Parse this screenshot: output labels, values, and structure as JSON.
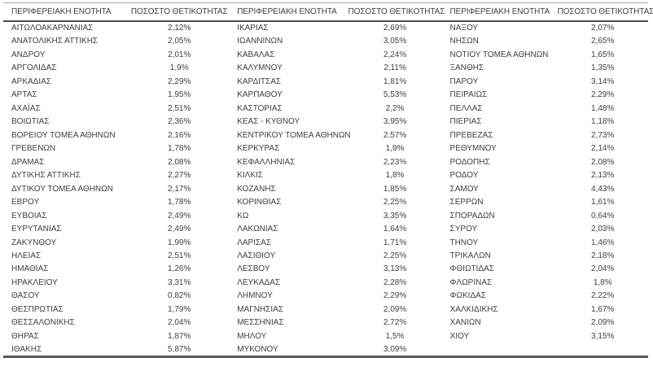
{
  "table": {
    "region_header": "ΠΕΡΙΦΕΡΕΙΑΚΗ ΕΝΟΤΗΤΑ",
    "positivity_header": "ΠΟΣΟΣΤΟ ΘΕΤΙΚΟΤΗΤΑΣ",
    "groups": [
      {
        "rows": [
          {
            "region": "ΑΙΤΩΛΟΑΚΑΡΝΑΝΙΑΣ",
            "value": "2,12%"
          },
          {
            "region": "ΑΝΑΤΟΛΙΚΗΣ ΑΤΤΙΚΗΣ",
            "value": "2,05%"
          },
          {
            "region": "ΑΝΔΡΟΥ",
            "value": "2,01%"
          },
          {
            "region": "ΑΡΓΟΛΙΔΑΣ",
            "value": "1,9%"
          },
          {
            "region": "ΑΡΚΑΔΙΑΣ",
            "value": "2,29%"
          },
          {
            "region": "ΑΡΤΑΣ",
            "value": "1,95%"
          },
          {
            "region": "ΑΧΑΪΑΣ",
            "value": "2,51%"
          },
          {
            "region": "ΒΟΙΩΤΙΑΣ",
            "value": "2,36%"
          },
          {
            "region": "ΒΟΡΕΙΟΥ ΤΟΜΕΑ ΑΘΗΝΩΝ",
            "value": "2,16%"
          },
          {
            "region": "ΓΡΕΒΕΝΩΝ",
            "value": "1,78%"
          },
          {
            "region": "ΔΡΑΜΑΣ",
            "value": "2,08%"
          },
          {
            "region": "ΔΥΤΙΚΗΣ ΑΤΤΙΚΗΣ",
            "value": "2,27%"
          },
          {
            "region": "ΔΥΤΙΚΟΥ ΤΟΜΕΑ ΑΘΗΝΩΝ",
            "value": "2,17%"
          },
          {
            "region": "ΕΒΡΟΥ",
            "value": "1,78%"
          },
          {
            "region": "ΕΥΒΟΙΑΣ",
            "value": "2,49%"
          },
          {
            "region": "ΕΥΡΥΤΑΝΙΑΣ",
            "value": "2,49%"
          },
          {
            "region": "ΖΑΚΥΝΘΟΥ",
            "value": "1,99%"
          },
          {
            "region": "ΗΛΕΙΑΣ",
            "value": "2,51%"
          },
          {
            "region": "ΗΜΑΘΙΑΣ",
            "value": "1,26%"
          },
          {
            "region": "ΗΡΑΚΛΕΙΟΥ",
            "value": "3,31%"
          },
          {
            "region": "ΘΑΣΟΥ",
            "value": "0,82%"
          },
          {
            "region": "ΘΕΣΠΡΩΤΙΑΣ",
            "value": "1,79%"
          },
          {
            "region": "ΘΕΣΣΑΛΟΝΙΚΗΣ",
            "value": "2,04%"
          },
          {
            "region": "ΘΗΡΑΣ",
            "value": "1,87%"
          },
          {
            "region": "ΙΘΑΚΗΣ",
            "value": "5,87%"
          }
        ]
      },
      {
        "rows": [
          {
            "region": "ΙΚΑΡΙΑΣ",
            "value": "2,69%"
          },
          {
            "region": "ΙΩΑΝΝΙΝΩΝ",
            "value": "3,05%"
          },
          {
            "region": "ΚΑΒΑΛΑΣ",
            "value": "2,24%"
          },
          {
            "region": "ΚΑΛΥΜΝΟΥ",
            "value": "2,11%"
          },
          {
            "region": "ΚΑΡΔΙΤΣΑΣ",
            "value": "1,81%"
          },
          {
            "region": "ΚΑΡΠΑΘΟΥ",
            "value": "5,53%"
          },
          {
            "region": "ΚΑΣΤΟΡΙΑΣ",
            "value": "2,2%"
          },
          {
            "region": "ΚΕΑΣ - ΚΥΘΝΟΥ",
            "value": "3,95%"
          },
          {
            "region": "ΚΕΝΤΡΙΚΟΥ ΤΟΜΕΑ ΑΘΗΝΩΝ",
            "value": "2,57%"
          },
          {
            "region": "ΚΕΡΚΥΡΑΣ",
            "value": "1,9%"
          },
          {
            "region": "ΚΕΦΑΛΛΗΝΙΑΣ",
            "value": "2,23%"
          },
          {
            "region": "ΚΙΛΚΙΣ",
            "value": "1,8%"
          },
          {
            "region": "ΚΟΖΑΝΗΣ",
            "value": "1,85%"
          },
          {
            "region": "ΚΟΡΙΝΘΙΑΣ",
            "value": "2,25%"
          },
          {
            "region": "ΚΩ",
            "value": "3,35%"
          },
          {
            "region": "ΛΑΚΩΝΙΑΣ",
            "value": "1,64%"
          },
          {
            "region": "ΛΑΡΙΣΑΣ",
            "value": "1,71%"
          },
          {
            "region": "ΛΑΣΙΘΙΟΥ",
            "value": "2,25%"
          },
          {
            "region": "ΛΕΣΒΟΥ",
            "value": "3,13%"
          },
          {
            "region": "ΛΕΥΚΑΔΑΣ",
            "value": "2,28%"
          },
          {
            "region": "ΛΗΜΝΟΥ",
            "value": "2,29%"
          },
          {
            "region": "ΜΑΓΝΗΣΙΑΣ",
            "value": "2,09%"
          },
          {
            "region": "ΜΕΣΣΗΝΙΑΣ",
            "value": "2,72%"
          },
          {
            "region": "ΜΗΛΟΥ",
            "value": "1,5%"
          },
          {
            "region": "ΜΥΚΟΝΟΥ",
            "value": "3,09%"
          }
        ]
      },
      {
        "rows": [
          {
            "region": "ΝΑΞΟΥ",
            "value": "2,07%"
          },
          {
            "region": "ΝΗΣΩΝ",
            "value": "2,65%"
          },
          {
            "region": "ΝΟΤΙΟΥ ΤΟΜΕΑ ΑΘΗΝΩΝ",
            "value": "1,65%"
          },
          {
            "region": "ΞΑΝΘΗΣ",
            "value": "1,35%"
          },
          {
            "region": "ΠΑΡΟΥ",
            "value": "3,14%"
          },
          {
            "region": "ΠΕΙΡΑΙΩΣ",
            "value": "2,29%"
          },
          {
            "region": "ΠΕΛΛΑΣ",
            "value": "1,48%"
          },
          {
            "region": "ΠΙΕΡΙΑΣ",
            "value": "1,18%"
          },
          {
            "region": "ΠΡΕΒΕΖΑΣ",
            "value": "2,73%"
          },
          {
            "region": "ΡΕΘΥΜΝΟΥ",
            "value": "2,14%"
          },
          {
            "region": "ΡΟΔΟΠΗΣ",
            "value": "2,08%"
          },
          {
            "region": "ΡΟΔΟΥ",
            "value": "2,13%"
          },
          {
            "region": "ΣΑΜΟΥ",
            "value": "4,43%"
          },
          {
            "region": "ΣΕΡΡΩΝ",
            "value": "1,61%"
          },
          {
            "region": "ΣΠΟΡΑΔΩΝ",
            "value": "0,64%"
          },
          {
            "region": "ΣΥΡΟΥ",
            "value": "2,03%"
          },
          {
            "region": "ΤΗΝΟΥ",
            "value": "1,46%"
          },
          {
            "region": "ΤΡΙΚΑΛΩΝ",
            "value": "2,18%"
          },
          {
            "region": "ΦΘΙΩΤΙΔΑΣ",
            "value": "2,04%"
          },
          {
            "region": "ΦΛΩΡΙΝΑΣ",
            "value": "1,8%"
          },
          {
            "region": "ΦΩΚΙΔΑΣ",
            "value": "2,22%"
          },
          {
            "region": "ΧΑΛΚΙΔΙΚΗΣ",
            "value": "1,67%"
          },
          {
            "region": "ΧΑΝΙΩΝ",
            "value": "2,09%"
          },
          {
            "region": "ΧΙΟΥ",
            "value": "3,15%"
          }
        ]
      }
    ]
  },
  "colors": {
    "background": "#ffffff",
    "text": "#3f3f3f",
    "top_border": "#a6a6a6",
    "header_border": "#4d4d4d",
    "bottom_border": "#595959"
  }
}
